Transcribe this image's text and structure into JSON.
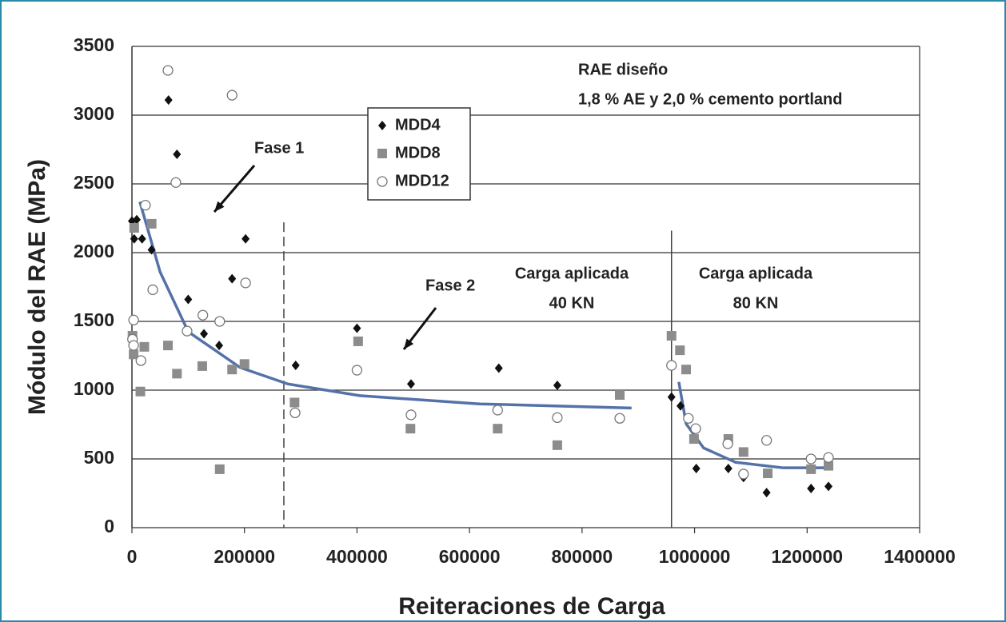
{
  "chart_data": {
    "type": "scatter",
    "xlabel": "Reiteraciones de Carga",
    "ylabel": "Módulo del RAE (MPa)",
    "xlim": [
      0,
      1400000
    ],
    "ylim": [
      0,
      3500
    ],
    "xticks": [
      0,
      200000,
      400000,
      600000,
      800000,
      1000000,
      1200000,
      1400000
    ],
    "yticks": [
      0,
      500,
      1000,
      1500,
      2000,
      2500,
      3000,
      3500
    ],
    "grid": true,
    "legend": "upper center",
    "series": [
      {
        "name": "MDD4",
        "color": "#111111",
        "marker": "diamond",
        "x": [
          0,
          8500,
          4000,
          18000,
          35000,
          65000,
          80000,
          100000,
          128000,
          155000,
          178000,
          202000,
          291000,
          400000,
          496000,
          652000,
          756000,
          959000,
          975000,
          1003000,
          1060000,
          1087000,
          1128000,
          1207000,
          1238000
        ],
        "values": [
          2230,
          2240,
          2100,
          2100,
          2020,
          3110,
          2715,
          1660,
          1410,
          1325,
          1810,
          2100,
          1180,
          1450,
          1045,
          1160,
          1035,
          950,
          885,
          430,
          430,
          365,
          255,
          285,
          300
        ]
      },
      {
        "name": "MDD8",
        "color": "#8c8c8c",
        "marker": "square",
        "x": [
          1000,
          3000,
          4000,
          15000,
          22000,
          35000,
          64000,
          80000,
          125000,
          178000,
          200000,
          156000,
          289000,
          402000,
          495000,
          650000,
          756000,
          867000,
          959000,
          974000,
          985000,
          999000,
          1060000,
          1087000,
          1130000,
          1207000,
          1238000
        ],
        "values": [
          1395,
          1260,
          2180,
          990,
          1315,
          2210,
          1325,
          1120,
          1175,
          1150,
          1190,
          425,
          910,
          1355,
          720,
          720,
          600,
          965,
          1395,
          1290,
          1150,
          645,
          645,
          550,
          395,
          425,
          450
        ]
      },
      {
        "name": "MDD12",
        "color": "#ffffff",
        "marker": "circle",
        "x": [
          3000,
          1000,
          3000,
          16000,
          24000,
          37000,
          64000,
          78000,
          98000,
          126000,
          156000,
          178000,
          202000,
          290000,
          400000,
          496000,
          650000,
          756000,
          867000,
          959000,
          989000,
          1002000,
          1059000,
          1087000,
          1128000,
          1207000,
          1238000
        ],
        "values": [
          1510,
          1370,
          1325,
          1215,
          2345,
          1730,
          3325,
          2510,
          1430,
          1545,
          1500,
          3145,
          1780,
          835,
          1145,
          820,
          855,
          800,
          795,
          1180,
          795,
          720,
          610,
          390,
          635,
          500,
          510
        ]
      }
    ],
    "trendlines": [
      {
        "color": "#5572a8",
        "x": [
          14000,
          50000,
          100000,
          192000,
          277000,
          405000,
          618000,
          888000
        ],
        "values": [
          2370,
          1860,
          1425,
          1165,
          1045,
          960,
          900,
          870
        ]
      },
      {
        "color": "#5572a8",
        "x": [
          972000,
          985000,
          1016000,
          1073000,
          1158000,
          1244000
        ],
        "values": [
          1060,
          755,
          580,
          475,
          435,
          435
        ]
      }
    ],
    "vlines": [
      {
        "x": 270000,
        "top": 2220,
        "style": "dashed"
      },
      {
        "x": 959000,
        "top": 2160,
        "style": "solid"
      }
    ],
    "annotations": [
      "RAE diseño",
      "1,8 % AE y 2,0 % cemento portland",
      "Fase 1",
      "Fase 2",
      "Carga aplicada",
      "40 KN",
      "Carga aplicada",
      "80 KN"
    ]
  }
}
